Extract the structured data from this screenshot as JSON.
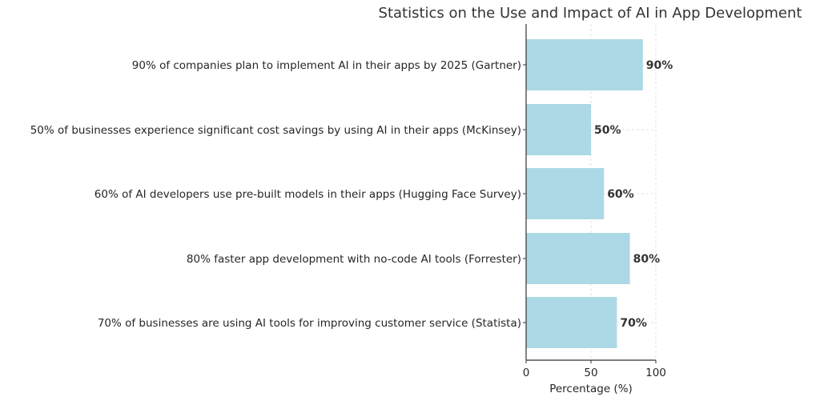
{
  "chart_data": {
    "type": "bar",
    "orientation": "horizontal",
    "title": "Statistics on the Use and Impact of AI in App Development",
    "xlabel": "Percentage (%)",
    "ylabel": "",
    "xlim": [
      0,
      100
    ],
    "xticks": [
      0,
      50,
      100
    ],
    "grid": true,
    "bar_color": "#add8e6",
    "categories": [
      "90% of companies plan to implement AI in their apps by 2025 (Gartner)",
      "50% of businesses experience significant cost savings by using AI in their apps (McKinsey)",
      "60% of AI developers use pre-built models in their apps (Hugging Face Survey)",
      "80% faster app development with no-code AI tools (Forrester)",
      "70% of businesses are using AI tools for improving customer service (Statista)"
    ],
    "values": [
      90,
      50,
      60,
      80,
      70
    ],
    "value_labels": [
      "90%",
      "50%",
      "60%",
      "80%",
      "70%"
    ]
  }
}
